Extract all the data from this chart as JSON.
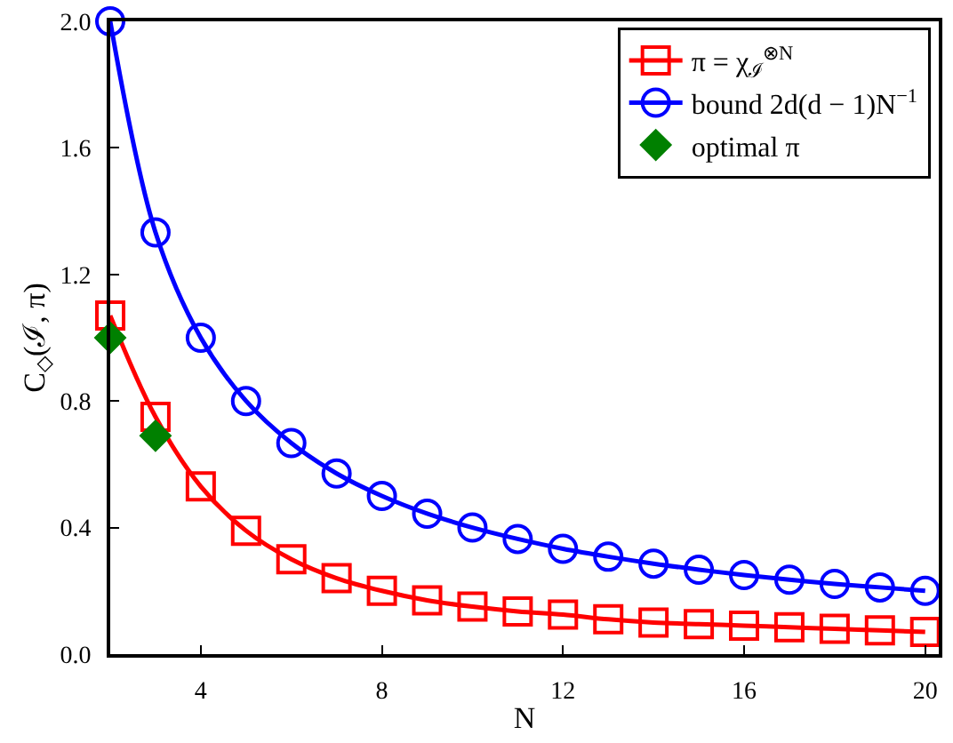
{
  "chart_data": {
    "type": "line",
    "xlabel": "N",
    "ylabel": "C$_{◇}$(ℐ, π)",
    "x": [
      2,
      3,
      4,
      5,
      6,
      7,
      8,
      9,
      10,
      11,
      12,
      13,
      14,
      15,
      16,
      17,
      18,
      19,
      20
    ],
    "series": [
      {
        "name": "π = χ$_{ℐ}$$^{⊗N}$",
        "color": "#ff0000",
        "marker": "square",
        "values": [
          1.07,
          0.75,
          0.53,
          0.39,
          0.3,
          0.24,
          0.2,
          0.17,
          0.15,
          0.135,
          0.125,
          0.11,
          0.1,
          0.095,
          0.09,
          0.085,
          0.08,
          0.075,
          0.07
        ]
      },
      {
        "name": "bound 2d(d − 1)N$^{−1}$",
        "color": "#0000ff",
        "marker": "circle",
        "values": [
          2.0,
          1.333,
          1.0,
          0.8,
          0.667,
          0.571,
          0.5,
          0.444,
          0.4,
          0.364,
          0.333,
          0.308,
          0.286,
          0.267,
          0.25,
          0.235,
          0.222,
          0.211,
          0.2
        ]
      },
      {
        "name": "optimal π",
        "type": "scatter",
        "color": "#008000",
        "marker": "diamond",
        "x": [
          2,
          3
        ],
        "values": [
          1.0,
          0.69
        ]
      }
    ],
    "xlim": [
      2,
      20.3
    ],
    "xticks": [
      4,
      8,
      12,
      16,
      20
    ],
    "ylim": [
      0,
      2.0
    ],
    "yticks": [
      {
        "value": 0,
        "label": "0.0"
      },
      0.4,
      0.8,
      1.2,
      1.6,
      {
        "value": 2,
        "label": "2.0"
      }
    ],
    "legend": "top right"
  }
}
